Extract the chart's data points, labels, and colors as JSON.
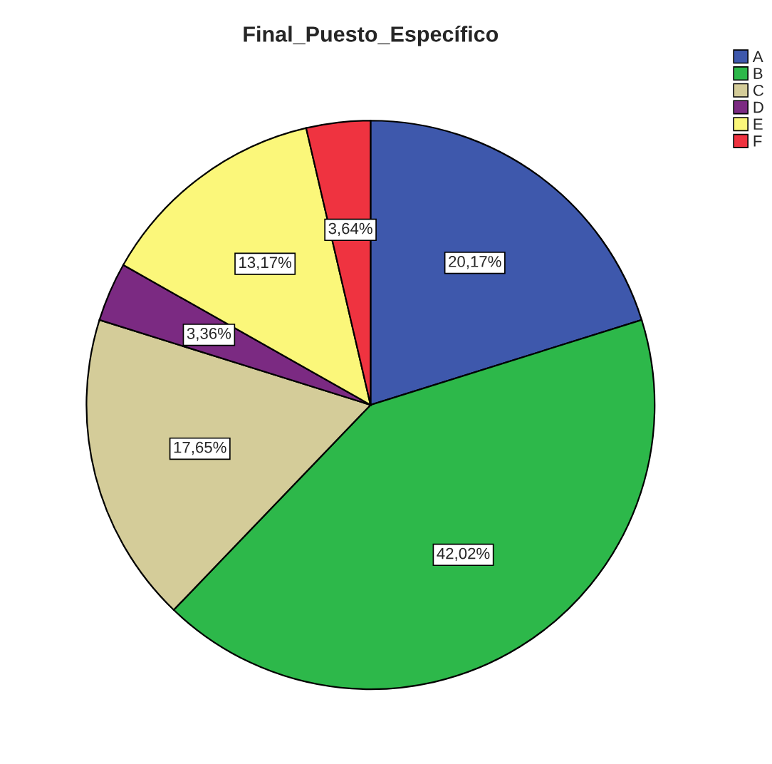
{
  "chart_data": {
    "type": "pie",
    "title": "Final_Puesto_Específico",
    "categories": [
      "A",
      "B",
      "C",
      "D",
      "E",
      "F"
    ],
    "values": [
      20.17,
      42.02,
      17.65,
      3.36,
      13.17,
      3.64
    ],
    "value_labels": [
      "20,17%",
      "42,02%",
      "17,65%",
      "3,36%",
      "13,17%",
      "3,64%"
    ],
    "colors": [
      "#3e58ac",
      "#2db84a",
      "#d4cc99",
      "#7b2a82",
      "#fbf77a",
      "#ef3340"
    ],
    "legend": "top right"
  }
}
